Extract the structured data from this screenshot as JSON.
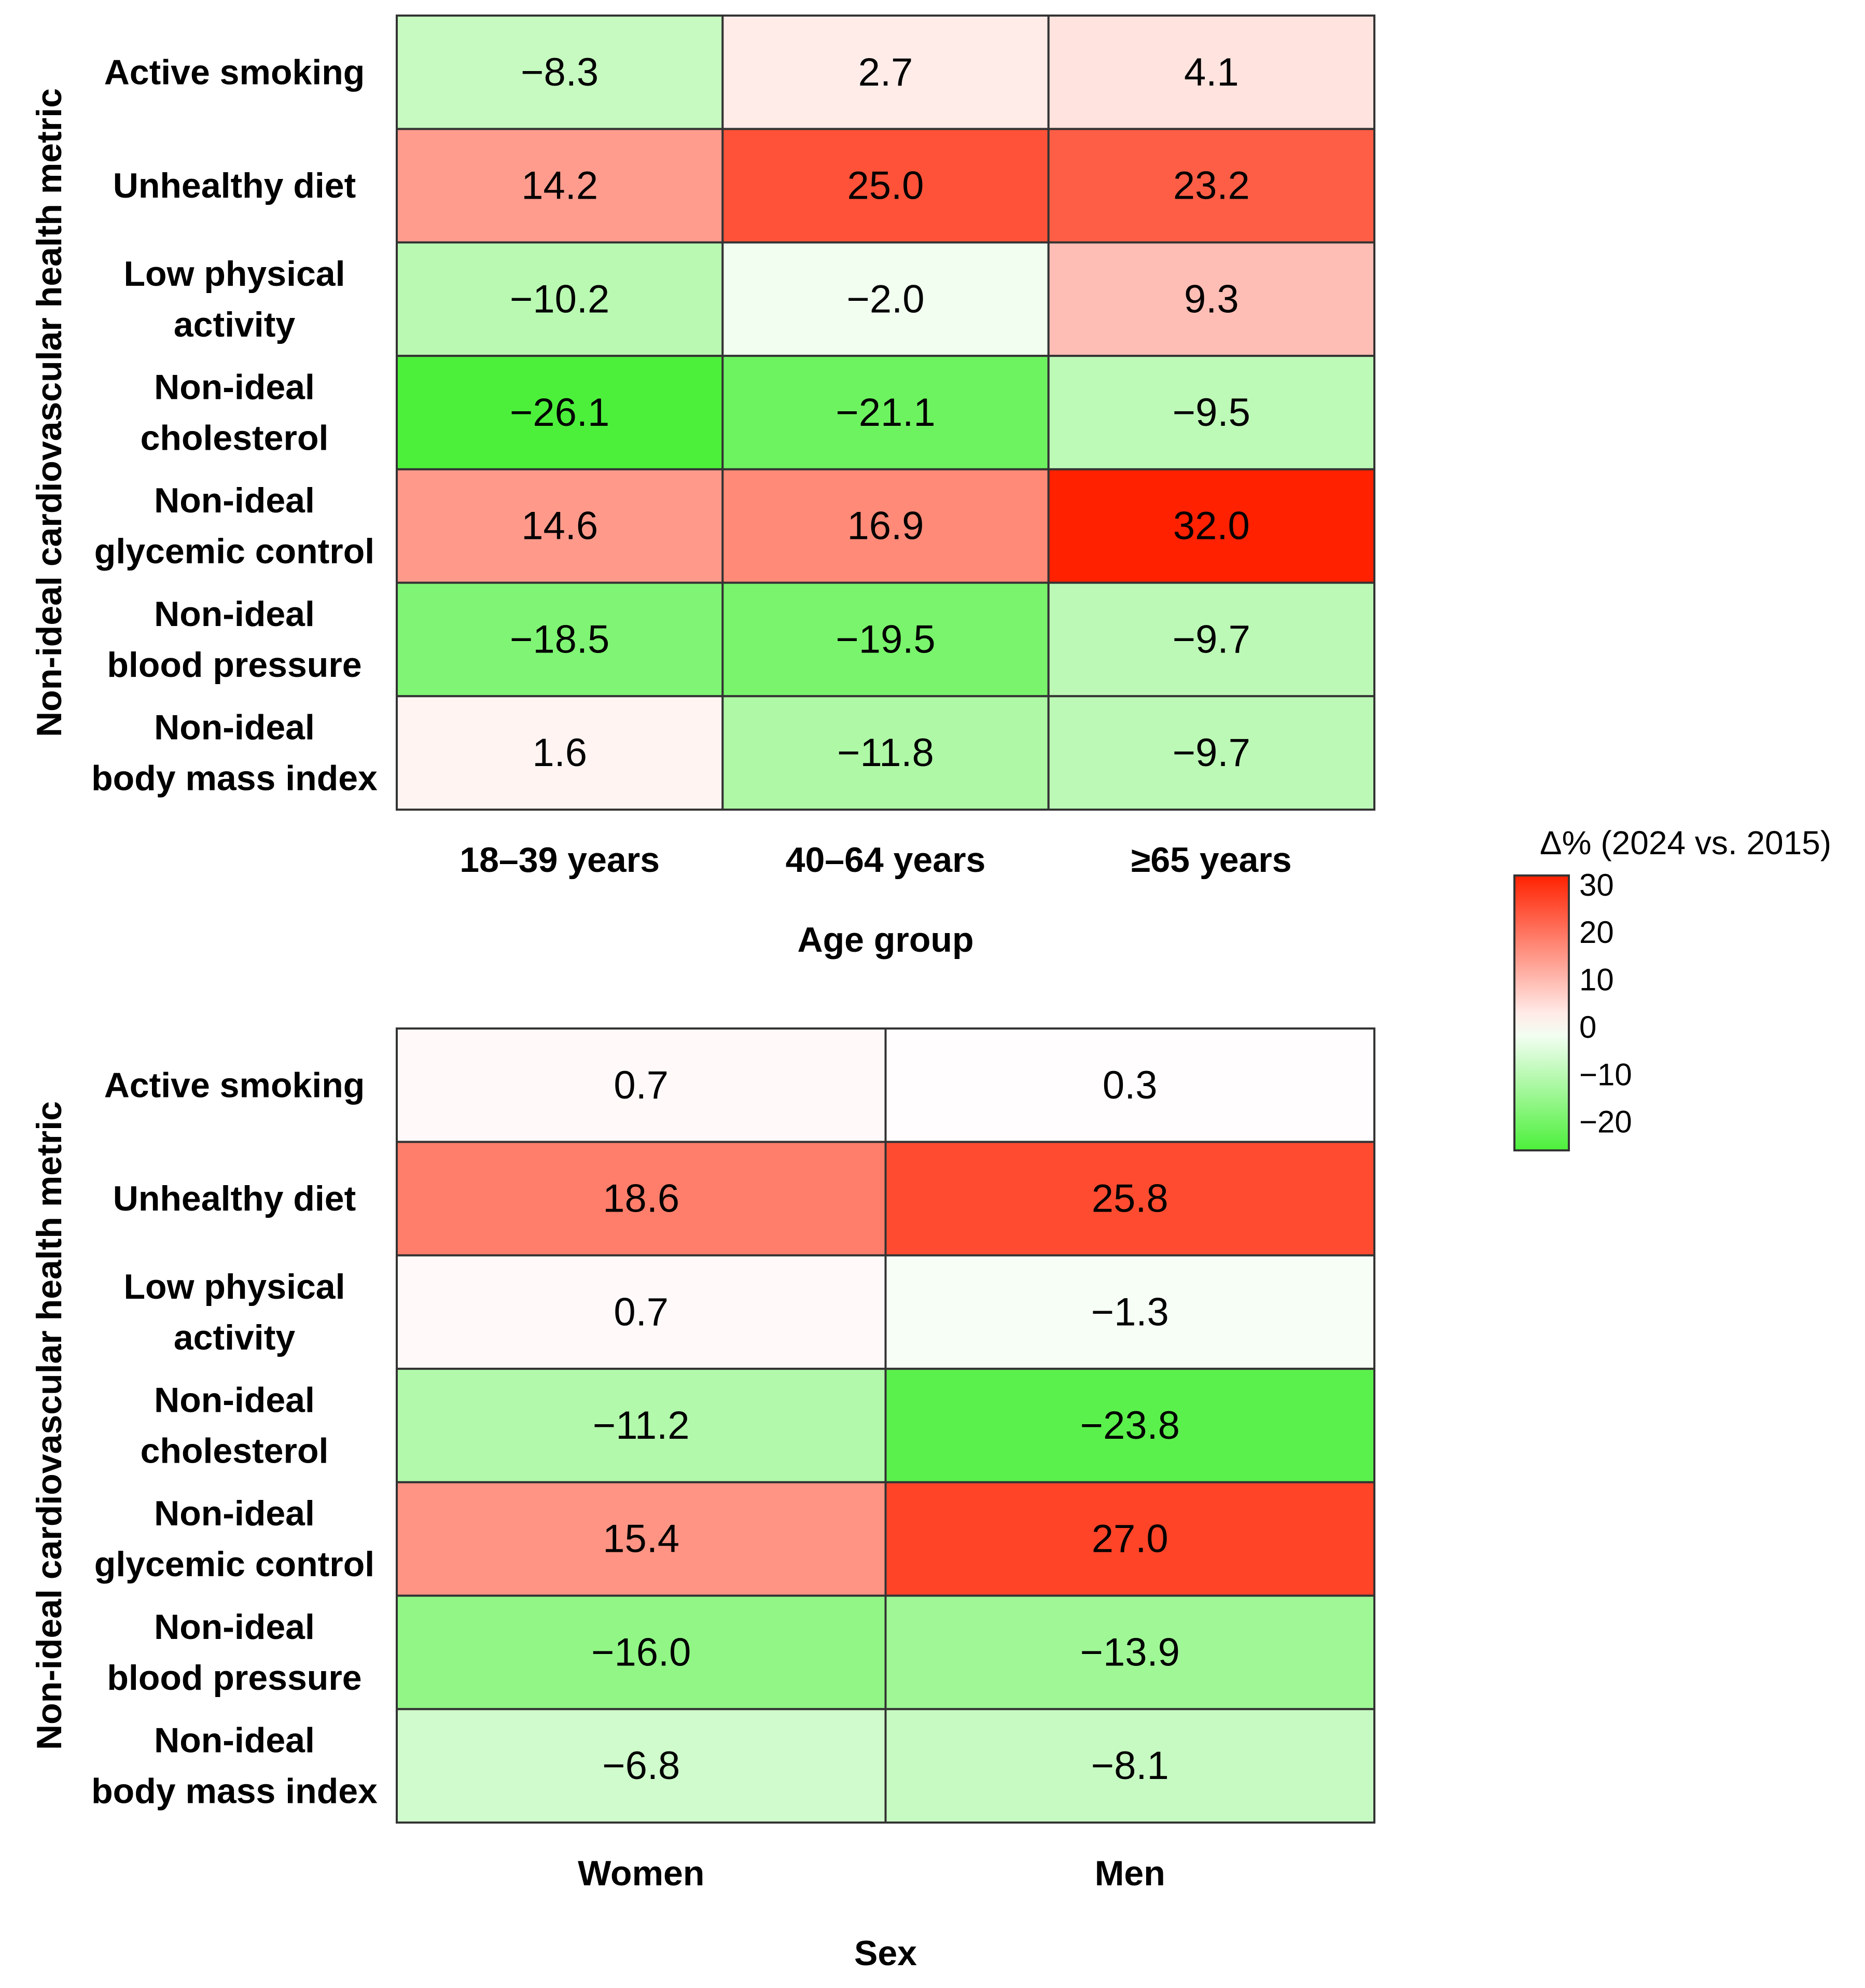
{
  "chart_data": [
    {
      "type": "heatmap",
      "title": "",
      "xlabel": "Age group",
      "ylabel": "Non-ideal cardiovascular health metric",
      "rows": [
        [
          "Active smoking"
        ],
        [
          "Unhealthy diet"
        ],
        [
          "Low physical",
          "activity"
        ],
        [
          "Non-ideal",
          "cholesterol"
        ],
        [
          "Non-ideal",
          "glycemic control"
        ],
        [
          "Non-ideal",
          "blood pressure"
        ],
        [
          "Non-ideal",
          "body mass index"
        ]
      ],
      "columns": [
        "18–39 years",
        "40–64 years",
        "≥65 years"
      ],
      "values": [
        [
          -8.3,
          2.7,
          4.1
        ],
        [
          14.2,
          25.0,
          23.2
        ],
        [
          -10.2,
          -2.0,
          9.3
        ],
        [
          -26.1,
          -21.1,
          -9.5
        ],
        [
          14.6,
          16.9,
          32.0
        ],
        [
          -18.5,
          -19.5,
          -9.7
        ],
        [
          1.6,
          -11.8,
          -9.7
        ]
      ],
      "value_labels": [
        [
          "−8.3",
          "2.7",
          "4.1"
        ],
        [
          "14.2",
          "25.0",
          "23.2"
        ],
        [
          "−10.2",
          "−2.0",
          "9.3"
        ],
        [
          "−26.1",
          "−21.1",
          "−9.5"
        ],
        [
          "14.6",
          "16.9",
          "32.0"
        ],
        [
          "−18.5",
          "−19.5",
          "−9.7"
        ],
        [
          "1.6",
          "−11.8",
          "−9.7"
        ]
      ]
    },
    {
      "type": "heatmap",
      "title": "",
      "xlabel": "Sex",
      "ylabel": "Non-ideal cardiovascular health metric",
      "rows": [
        [
          "Active smoking"
        ],
        [
          "Unhealthy diet"
        ],
        [
          "Low physical",
          "activity"
        ],
        [
          "Non-ideal",
          "cholesterol"
        ],
        [
          "Non-ideal",
          "glycemic control"
        ],
        [
          "Non-ideal",
          "blood pressure"
        ],
        [
          "Non-ideal",
          "body mass index"
        ]
      ],
      "columns": [
        "Women",
        "Men"
      ],
      "values": [
        [
          0.7,
          0.3
        ],
        [
          18.6,
          25.8
        ],
        [
          0.7,
          -1.3
        ],
        [
          -11.2,
          -23.8
        ],
        [
          15.4,
          27.0
        ],
        [
          -16.0,
          -13.9
        ],
        [
          -6.8,
          -8.1
        ]
      ],
      "value_labels": [
        [
          "0.7",
          "0.3"
        ],
        [
          "18.6",
          "25.8"
        ],
        [
          "0.7",
          "−1.3"
        ],
        [
          "−11.2",
          "−23.8"
        ],
        [
          "15.4",
          "27.0"
        ],
        [
          "−16.0",
          "−13.9"
        ],
        [
          "−6.8",
          "−8.1"
        ]
      ]
    }
  ],
  "legend": {
    "title": "Δ% (2024 vs. 2015)",
    "ticks": [
      30,
      20,
      10,
      0,
      -10,
      -20
    ],
    "tick_labels": [
      "30",
      "20",
      "10",
      "0",
      "−10",
      "−20"
    ],
    "range": [
      -26,
      32
    ],
    "colors": {
      "low": "#4cf03b",
      "mid": "#ffffff",
      "high": "#ff2100"
    }
  }
}
